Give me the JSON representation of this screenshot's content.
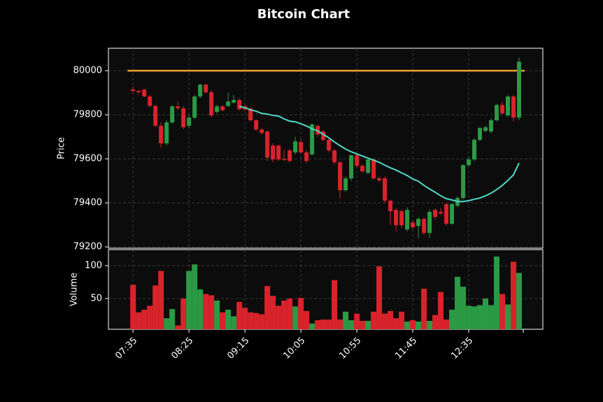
{
  "chart_data": [
    {
      "type": "candlestick",
      "title": "Bitcoin Chart",
      "ylabel": "Price",
      "open": [
        79915,
        79908,
        79914,
        79883,
        79840,
        79750,
        79670,
        79765,
        79838,
        79829,
        79750,
        79787,
        79883,
        79937,
        79902,
        79813,
        79838,
        79840,
        79855,
        79867,
        79838,
        79829,
        79775,
        79733,
        79724,
        79660,
        79660,
        79600,
        79638,
        79629,
        79676,
        79629,
        79620,
        79749,
        79724,
        79686,
        79638,
        79584,
        79457,
        79511,
        79616,
        79568,
        79536,
        79597,
        79511,
        79511,
        79410,
        79368,
        79362,
        79279,
        79311,
        79295,
        79327,
        79263,
        79368,
        79359,
        79394,
        79305,
        79387,
        79422,
        79571,
        79597,
        79686,
        79727,
        79724,
        79775,
        79844,
        79797,
        79883,
        79787
      ],
      "high": [
        79930,
        79912,
        79918,
        79890,
        79845,
        79765,
        79775,
        79845,
        79860,
        79840,
        79800,
        79890,
        79940,
        79940,
        79910,
        79845,
        79845,
        79900,
        79890,
        79875,
        79845,
        79835,
        79780,
        79740,
        79730,
        79670,
        79665,
        79640,
        79645,
        79700,
        79690,
        79640,
        79760,
        79755,
        79730,
        79690,
        79645,
        79590,
        79520,
        79620,
        79625,
        79575,
        79605,
        79600,
        79520,
        79520,
        79415,
        79375,
        79370,
        79380,
        79320,
        79335,
        79335,
        79370,
        79375,
        79375,
        79400,
        79400,
        79430,
        79575,
        79610,
        79695,
        79745,
        79750,
        79785,
        79850,
        79860,
        79890,
        79890,
        80060
      ],
      "low": [
        79900,
        79895,
        79880,
        79835,
        79745,
        79650,
        79660,
        79760,
        79820,
        79735,
        79740,
        79780,
        79875,
        79895,
        79790,
        79805,
        79815,
        79835,
        79850,
        79820,
        79815,
        79770,
        79725,
        79710,
        79590,
        79585,
        79590,
        79590,
        79585,
        79620,
        79620,
        79580,
        79615,
        79700,
        79680,
        79630,
        79575,
        79420,
        79450,
        79500,
        79560,
        79535,
        79530,
        79505,
        79495,
        79400,
        79300,
        79270,
        79285,
        79270,
        79280,
        79240,
        79255,
        79240,
        79325,
        79345,
        79295,
        79300,
        79380,
        79415,
        79565,
        79590,
        79680,
        79720,
        79715,
        79770,
        79800,
        79790,
        79770,
        79775
      ],
      "close": [
        79908,
        79902,
        79883,
        79840,
        79750,
        79670,
        79765,
        79838,
        79829,
        79743,
        79787,
        79883,
        79937,
        79902,
        79797,
        79838,
        79820,
        79860,
        79867,
        79825,
        79825,
        79775,
        79733,
        79717,
        79606,
        79597,
        79597,
        79595,
        79590,
        79679,
        79629,
        79590,
        79756,
        79711,
        79686,
        79638,
        79584,
        79457,
        79511,
        79616,
        79568,
        79543,
        79597,
        79511,
        79502,
        79410,
        79362,
        79298,
        79298,
        79368,
        79289,
        79327,
        79263,
        79359,
        79336,
        79352,
        79305,
        79394,
        79422,
        79571,
        79597,
        79686,
        79740,
        79743,
        79775,
        79844,
        79806,
        79883,
        79787,
        80041
      ],
      "up_color": "#2b9a45",
      "down_color": "#d9232b",
      "moving_average": {
        "color": "#4fd8c8",
        "values": [
          null,
          null,
          null,
          null,
          null,
          null,
          null,
          null,
          null,
          null,
          null,
          null,
          null,
          null,
          null,
          null,
          null,
          null,
          null,
          79838,
          79832,
          79822,
          79816,
          79806,
          79803,
          79797,
          79794,
          79781,
          79771,
          79768,
          79759,
          79749,
          79736,
          79727,
          79711,
          79695,
          79676,
          79660,
          79644,
          79632,
          79622,
          79613,
          79603,
          79594,
          79584,
          79571,
          79559,
          79549,
          79536,
          79524,
          79508,
          79498,
          79479,
          79463,
          79448,
          79432,
          79419,
          79413,
          79406,
          79406,
          79410,
          79416,
          79422,
          79432,
          79444,
          79460,
          79479,
          79502,
          79527,
          79581
        ]
      },
      "hline": {
        "value": 80000,
        "color": "#f0a030"
      },
      "ylim": [
        79194,
        80102
      ],
      "yticks": [
        79200,
        79400,
        79600,
        79800,
        80000
      ],
      "grid": true
    },
    {
      "type": "bar",
      "ylabel": "Volume",
      "values": [
        71,
        29,
        33,
        39,
        70,
        92,
        20,
        34,
        9,
        50,
        92,
        102,
        64,
        57,
        55,
        47,
        29,
        33,
        23,
        45,
        36,
        29,
        28,
        26,
        69,
        54,
        39,
        47,
        50,
        38,
        51,
        31,
        12,
        17,
        18,
        18,
        78,
        18,
        30,
        17,
        27,
        16,
        16,
        30,
        99,
        27,
        31,
        20,
        30,
        15,
        17,
        15,
        65,
        16,
        25,
        60,
        18,
        33,
        83,
        68,
        39,
        38,
        40,
        50,
        40,
        114,
        57,
        41,
        106,
        89
      ],
      "xlim": [
        -4.4,
        73.25
      ],
      "xticks": [
        {
          "value": 0,
          "label": "07:35"
        },
        {
          "value": 10,
          "label": "08:25"
        },
        {
          "value": 20,
          "label": "09:15"
        },
        {
          "value": 30,
          "label": "10:05"
        },
        {
          "value": 40,
          "label": "10:55"
        },
        {
          "value": 50,
          "label": "11:45"
        },
        {
          "value": 60,
          "label": "12:35"
        }
      ],
      "ylim": [
        3.2,
        124.5
      ],
      "yticks": [
        50,
        100
      ],
      "grid": true
    }
  ]
}
